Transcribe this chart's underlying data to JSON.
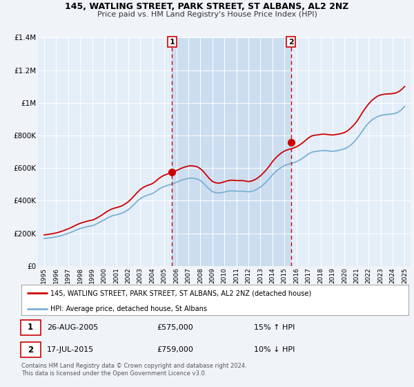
{
  "title": "145, WATLING STREET, PARK STREET, ST ALBANS, AL2 2NZ",
  "subtitle": "Price paid vs. HM Land Registry's House Price Index (HPI)",
  "legend_label_red": "145, WATLING STREET, PARK STREET, ST ALBANS, AL2 2NZ (detached house)",
  "legend_label_blue": "HPI: Average price, detached house, St Albans",
  "transaction1_date": "26-AUG-2005",
  "transaction1_price": "£575,000",
  "transaction1_hpi": "15% ↑ HPI",
  "transaction2_date": "17-JUL-2015",
  "transaction2_price": "£759,000",
  "transaction2_hpi": "10% ↓ HPI",
  "footer": "Contains HM Land Registry data © Crown copyright and database right 2024.\nThis data is licensed under the Open Government Licence v3.0.",
  "ylim": [
    0,
    1400000
  ],
  "yticks": [
    0,
    200000,
    400000,
    600000,
    800000,
    1000000,
    1200000,
    1400000
  ],
  "ytick_labels": [
    "£0",
    "£200K",
    "£400K",
    "£600K",
    "£800K",
    "£1M",
    "£1.2M",
    "£1.4M"
  ],
  "color_red": "#cc0000",
  "color_blue": "#7ab0d4",
  "vline_color": "#cc0000",
  "background_color": "#f0f4f8",
  "plot_bg": "#e4eef8",
  "highlight_color": "#ccddf0",
  "marker1_x": 2005.65,
  "marker1_y": 575000,
  "marker2_x": 2015.54,
  "marker2_y": 759000,
  "hpi_years": [
    1995,
    1995.25,
    1995.5,
    1995.75,
    1996,
    1996.25,
    1996.5,
    1996.75,
    1997,
    1997.25,
    1997.5,
    1997.75,
    1998,
    1998.25,
    1998.5,
    1998.75,
    1999,
    1999.25,
    1999.5,
    1999.75,
    2000,
    2000.25,
    2000.5,
    2000.75,
    2001,
    2001.25,
    2001.5,
    2001.75,
    2002,
    2002.25,
    2002.5,
    2002.75,
    2003,
    2003.25,
    2003.5,
    2003.75,
    2004,
    2004.25,
    2004.5,
    2004.75,
    2005,
    2005.25,
    2005.5,
    2005.75,
    2006,
    2006.25,
    2006.5,
    2006.75,
    2007,
    2007.25,
    2007.5,
    2007.75,
    2008,
    2008.25,
    2008.5,
    2008.75,
    2009,
    2009.25,
    2009.5,
    2009.75,
    2010,
    2010.25,
    2010.5,
    2010.75,
    2011,
    2011.25,
    2011.5,
    2011.75,
    2012,
    2012.25,
    2012.5,
    2012.75,
    2013,
    2013.25,
    2013.5,
    2013.75,
    2014,
    2014.25,
    2014.5,
    2014.75,
    2015,
    2015.25,
    2015.5,
    2015.75,
    2016,
    2016.25,
    2016.5,
    2016.75,
    2017,
    2017.25,
    2017.5,
    2017.75,
    2018,
    2018.25,
    2018.5,
    2018.75,
    2019,
    2019.25,
    2019.5,
    2019.75,
    2020,
    2020.25,
    2020.5,
    2020.75,
    2021,
    2021.25,
    2021.5,
    2021.75,
    2022,
    2022.25,
    2022.5,
    2022.75,
    2023,
    2023.25,
    2023.5,
    2023.75,
    2024,
    2024.25,
    2024.5,
    2024.75,
    2025
  ],
  "hpi_values": [
    168000,
    170000,
    172000,
    175000,
    178000,
    182000,
    187000,
    193000,
    199000,
    206000,
    214000,
    222000,
    229000,
    234000,
    239000,
    243000,
    246000,
    253000,
    262000,
    272000,
    282000,
    293000,
    302000,
    309000,
    313000,
    318000,
    324000,
    333000,
    344000,
    360000,
    378000,
    397000,
    412000,
    423000,
    431000,
    437000,
    443000,
    454000,
    468000,
    479000,
    487000,
    493000,
    499000,
    505000,
    512000,
    520000,
    527000,
    532000,
    536000,
    538000,
    536000,
    532000,
    523000,
    508000,
    488000,
    470000,
    455000,
    449000,
    447000,
    449000,
    453000,
    457000,
    460000,
    460000,
    458000,
    458000,
    458000,
    456000,
    454000,
    456000,
    462000,
    472000,
    483000,
    498000,
    516000,
    536000,
    558000,
    576000,
    592000,
    604000,
    615000,
    622000,
    627000,
    632000,
    639000,
    648000,
    660000,
    673000,
    687000,
    696000,
    701000,
    703000,
    706000,
    707000,
    706000,
    704000,
    702000,
    705000,
    708000,
    713000,
    718000,
    727000,
    740000,
    757000,
    778000,
    802000,
    828000,
    855000,
    876000,
    893000,
    906000,
    916000,
    922000,
    926000,
    928000,
    930000,
    932000,
    936000,
    944000,
    958000,
    978000
  ],
  "red_years": [
    1995,
    1995.25,
    1995.5,
    1995.75,
    1996,
    1996.25,
    1996.5,
    1996.75,
    1997,
    1997.25,
    1997.5,
    1997.75,
    1998,
    1998.25,
    1998.5,
    1998.75,
    1999,
    1999.25,
    1999.5,
    1999.75,
    2000,
    2000.25,
    2000.5,
    2000.75,
    2001,
    2001.25,
    2001.5,
    2001.75,
    2002,
    2002.25,
    2002.5,
    2002.75,
    2003,
    2003.25,
    2003.5,
    2003.75,
    2004,
    2004.25,
    2004.5,
    2004.75,
    2005,
    2005.25,
    2005.5,
    2005.75,
    2006,
    2006.25,
    2006.5,
    2006.75,
    2007,
    2007.25,
    2007.5,
    2007.75,
    2008,
    2008.25,
    2008.5,
    2008.75,
    2009,
    2009.25,
    2009.5,
    2009.75,
    2010,
    2010.25,
    2010.5,
    2010.75,
    2011,
    2011.25,
    2011.5,
    2011.75,
    2012,
    2012.25,
    2012.5,
    2012.75,
    2013,
    2013.25,
    2013.5,
    2013.75,
    2014,
    2014.25,
    2014.5,
    2014.75,
    2015,
    2015.25,
    2015.5,
    2015.75,
    2016,
    2016.25,
    2016.5,
    2016.75,
    2017,
    2017.25,
    2017.5,
    2017.75,
    2018,
    2018.25,
    2018.5,
    2018.75,
    2019,
    2019.25,
    2019.5,
    2019.75,
    2020,
    2020.25,
    2020.5,
    2020.75,
    2021,
    2021.25,
    2021.5,
    2021.75,
    2022,
    2022.25,
    2022.5,
    2022.75,
    2023,
    2023.25,
    2023.5,
    2023.75,
    2024,
    2024.25,
    2024.5,
    2024.75,
    2025
  ],
  "red_values": [
    190000,
    192000,
    195000,
    198000,
    202000,
    207000,
    213000,
    220000,
    227000,
    235000,
    244000,
    253000,
    261000,
    267000,
    272000,
    277000,
    280000,
    288000,
    298000,
    309000,
    321000,
    334000,
    344000,
    352000,
    357000,
    362000,
    369000,
    380000,
    393000,
    410000,
    430000,
    450000,
    468000,
    481000,
    490000,
    497000,
    504000,
    517000,
    533000,
    546000,
    556000,
    563000,
    569000,
    575000,
    584000,
    593000,
    601000,
    607000,
    612000,
    614000,
    612000,
    607000,
    596000,
    579000,
    557000,
    535000,
    518000,
    510000,
    507000,
    510000,
    516000,
    521000,
    525000,
    525000,
    523000,
    523000,
    523000,
    520000,
    517000,
    520000,
    527000,
    538000,
    552000,
    570000,
    590000,
    613000,
    639000,
    660000,
    678000,
    693000,
    704000,
    712000,
    717000,
    723000,
    730000,
    741000,
    754000,
    769000,
    785000,
    796000,
    801000,
    803000,
    806000,
    808000,
    806000,
    804000,
    802000,
    805000,
    808000,
    812000,
    818000,
    828000,
    844000,
    862000,
    884000,
    912000,
    942000,
    969000,
    993000,
    1013000,
    1028000,
    1041000,
    1048000,
    1052000,
    1054000,
    1055000,
    1056000,
    1060000,
    1068000,
    1082000,
    1100000
  ],
  "xticks": [
    1995,
    1996,
    1997,
    1998,
    1999,
    2000,
    2001,
    2002,
    2003,
    2004,
    2005,
    2006,
    2007,
    2008,
    2009,
    2010,
    2011,
    2012,
    2013,
    2014,
    2015,
    2016,
    2017,
    2018,
    2019,
    2020,
    2021,
    2022,
    2023,
    2024,
    2025
  ],
  "xlim": [
    1994.5,
    2025.5
  ]
}
